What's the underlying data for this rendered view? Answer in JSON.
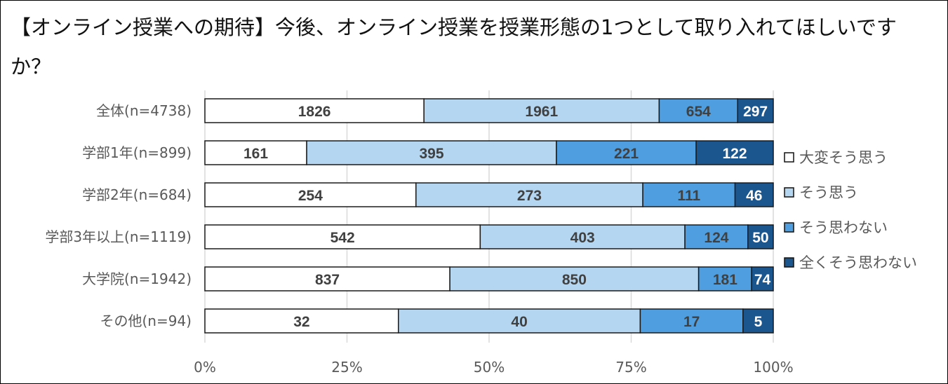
{
  "chart_data": {
    "type": "bar",
    "orientation": "horizontal",
    "stacked": "percent",
    "title": "【オンライン授業への期待】今後、オンライン授業を授業形態の1つとして取り入れてほしいですか？",
    "categories": [
      "全体(n=4738)",
      "学部1年(n=899)",
      "学部2年(n=684)",
      "学部3年以上(n=1119)",
      "大学院(n=1942)",
      "その他(n=94)"
    ],
    "series": [
      {
        "name": "大変そう思う",
        "color": "#ffffff",
        "label_color": "#404040",
        "values": [
          1826,
          161,
          254,
          542,
          837,
          32
        ]
      },
      {
        "name": "そう思う",
        "color": "#b4d6f0",
        "label_color": "#404040",
        "values": [
          1961,
          395,
          273,
          403,
          850,
          40
        ]
      },
      {
        "name": "そう思わない",
        "color": "#4f9fe0",
        "label_color": "#404040",
        "values": [
          654,
          221,
          111,
          124,
          181,
          17
        ]
      },
      {
        "name": "全くそう思わない",
        "color": "#1b568f",
        "label_color": "#ffffff",
        "values": [
          297,
          122,
          46,
          50,
          74,
          5
        ]
      }
    ],
    "x_ticks": [
      "0%",
      "25%",
      "50%",
      "75%",
      "100%"
    ],
    "xlim": [
      0,
      100
    ],
    "grid": true,
    "legend_position": "right"
  }
}
